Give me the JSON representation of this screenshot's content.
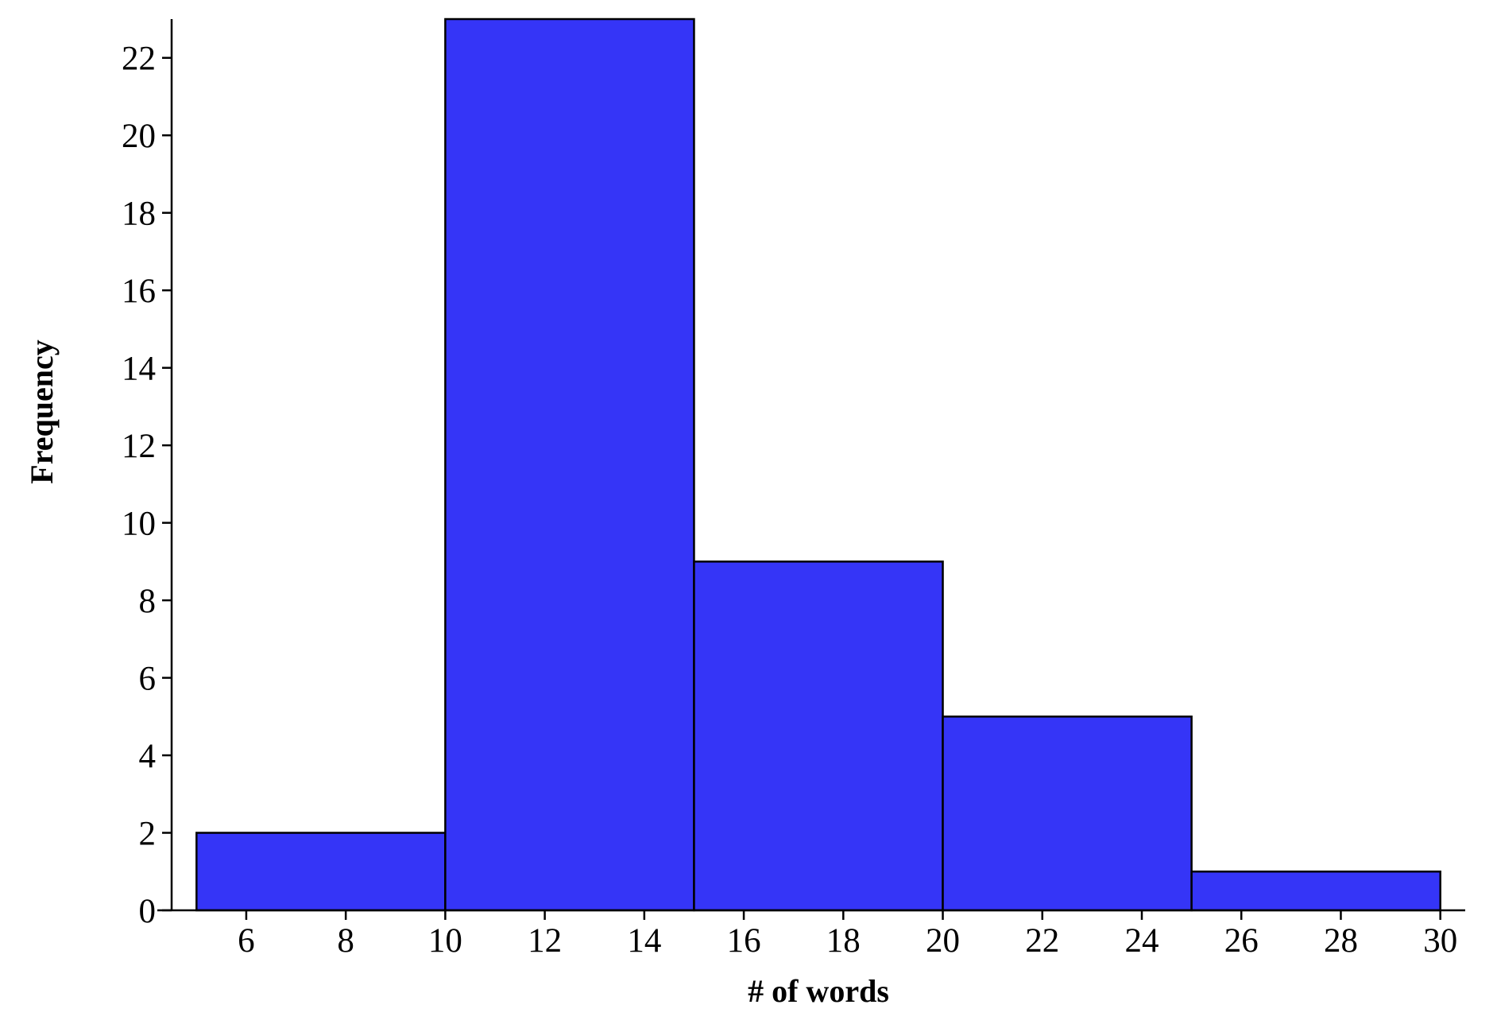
{
  "chart_data": {
    "type": "histogram",
    "bins": [
      5,
      10,
      15,
      20,
      25,
      30
    ],
    "values": [
      2,
      23,
      9,
      5,
      1
    ],
    "color": "#3535f7",
    "xlabel": "# of words",
    "ylabel": "Frequency",
    "xlim": [
      4.5,
      30.5
    ],
    "ylim": [
      0,
      23
    ],
    "xticks": [
      6,
      8,
      10,
      12,
      14,
      16,
      18,
      20,
      22,
      24,
      26,
      28,
      30
    ],
    "yticks": [
      0,
      2,
      4,
      6,
      8,
      10,
      12,
      14,
      16,
      18,
      20,
      22
    ]
  }
}
